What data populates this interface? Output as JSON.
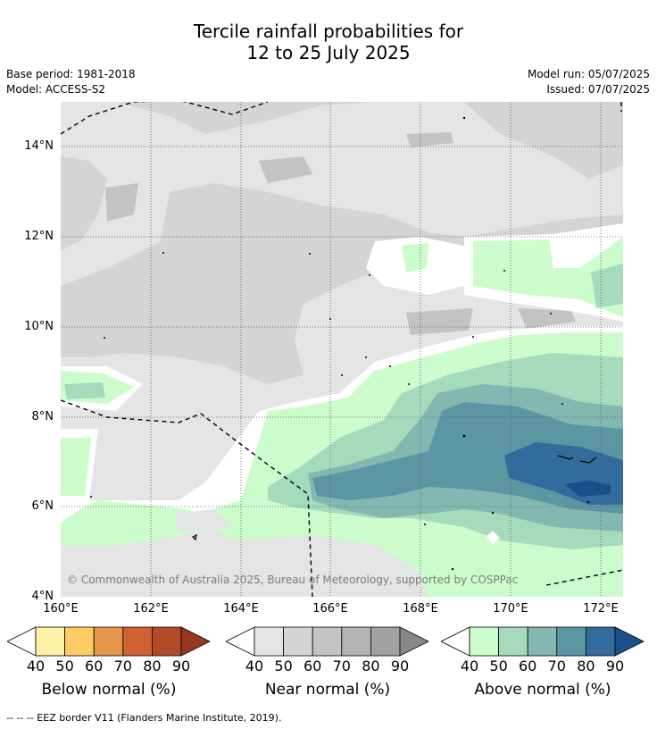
{
  "title_line1": "Tercile rainfall probabilities for",
  "title_line2": "12 to 25 July 2025",
  "base_period": "Base period: 1981-2018",
  "model": "Model: ACCESS-S2",
  "model_run": "Model run: 05/07/2025",
  "issued": "Issued: 07/07/2025",
  "copyright": "© Commonwealth of Australia 2025, Bureau of Meteorology, supported by COSPPac",
  "lat_labels": [
    "14°N",
    "12°N",
    "10°N",
    "8°N",
    "6°N",
    "4°N"
  ],
  "lon_labels": [
    "160°E",
    "162°E",
    "164°E",
    "166°E",
    "168°E",
    "170°E",
    "172°E"
  ],
  "legends": [
    {
      "title": "Below normal (%)",
      "ticks": [
        "40",
        "50",
        "60",
        "70",
        "80",
        "90"
      ],
      "colors": [
        "#fff0a8",
        "#fdcd63",
        "#e3954a",
        "#d06232",
        "#b14b27",
        "#97371e"
      ]
    },
    {
      "title": "Near normal (%)",
      "ticks": [
        "40",
        "50",
        "60",
        "70",
        "80",
        "90"
      ],
      "colors": [
        "#e4e4e4",
        "#d4d4d4",
        "#c3c3c3",
        "#b3b3b3",
        "#a2a2a2",
        "#888888"
      ]
    },
    {
      "title": "Above normal (%)",
      "ticks": [
        "40",
        "50",
        "60",
        "70",
        "80",
        "90"
      ],
      "colors": [
        "#ccfccb",
        "#a5dbbc",
        "#82b8b0",
        "#5d96a3",
        "#336c9c",
        "#1a4f8a"
      ]
    }
  ],
  "footnote": "--  --  -- EEZ border V11 (Flanders Marine Institute, 2019)."
}
